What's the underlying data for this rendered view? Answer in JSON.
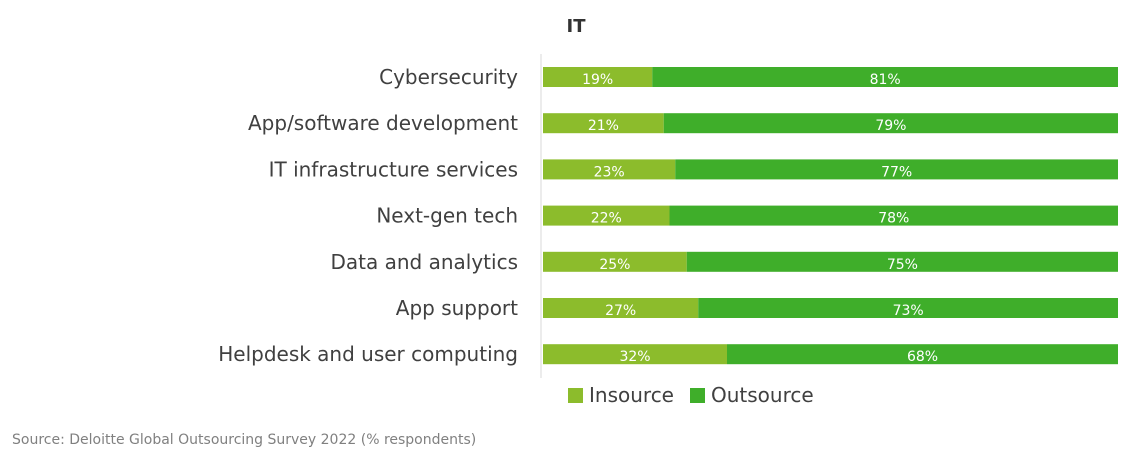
{
  "chart_data": {
    "type": "bar",
    "orientation": "horizontal",
    "stacked": true,
    "title": "IT",
    "categories": [
      "Cybersecurity",
      "App/software development",
      "IT infrastructure services",
      "Next-gen tech",
      "Data and analytics",
      "App support",
      "Helpdesk and user computing"
    ],
    "series": [
      {
        "name": "Insource",
        "color": "#8cbc2c",
        "values": [
          19,
          21,
          23,
          22,
          25,
          27,
          32
        ],
        "labels": [
          "19%",
          "21%",
          "23%",
          "22%",
          "25%",
          "27%",
          "32%"
        ]
      },
      {
        "name": "Outsource",
        "color": "#3fae2a",
        "values": [
          81,
          79,
          77,
          78,
          75,
          73,
          68
        ],
        "labels": [
          "81%",
          "79%",
          "77%",
          "78%",
          "75%",
          "73%",
          "68%"
        ]
      }
    ],
    "xlim": [
      0,
      100
    ],
    "grid": false,
    "legend_position": "bottom"
  },
  "source": "Source: Deloitte Global Outsourcing Survey 2022 (% respondents)"
}
